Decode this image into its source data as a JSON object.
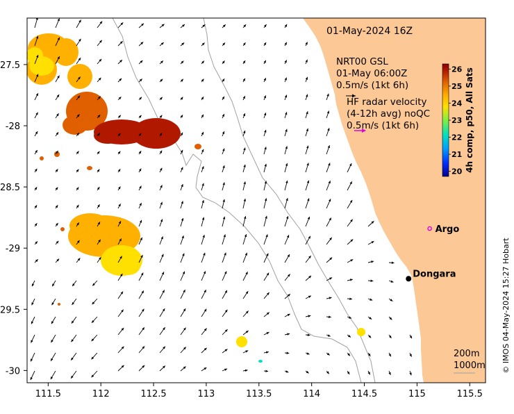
{
  "map": {
    "title_date": "01-May-2024 16Z",
    "x_ticks": [
      "111.5",
      "112",
      "112.5",
      "113",
      "113.5",
      "114",
      "114.5",
      "115",
      "115.5"
    ],
    "y_ticks": [
      "-27.5",
      "-28",
      "-28.5",
      "-29",
      "-29.5",
      "-30"
    ],
    "x_range": [
      111.3,
      115.65
    ],
    "y_range": [
      -27.12,
      -30.1
    ],
    "legend": {
      "line1": "NRT00 GSL",
      "line2": "01-May 06:00Z",
      "line3": "0.5m/s (1kt 6h)",
      "line4": "HF radar velocity",
      "line5": "(4-12h avg) noQC",
      "line6": "0.5m/s (1kt 6h)"
    },
    "colorbar": {
      "label": "4h comp, p50, All Sats",
      "ticks": [
        "26",
        "25",
        "24",
        "23",
        "22",
        "21",
        "20"
      ],
      "range": [
        19.7,
        26.3
      ]
    },
    "places": [
      {
        "name": "Argo",
        "lon": 115.12,
        "lat": -28.84,
        "marker": "circle",
        "color": "#e000e0"
      },
      {
        "name": "Dongara",
        "lon": 114.92,
        "lat": -29.25,
        "marker": "dot",
        "color": "#000000"
      }
    ],
    "depth_labels": {
      "d200": "200m",
      "d1000": "1000m"
    },
    "credit": "© IMOS 04-May-2024 15:27 Hobart",
    "colors": {
      "land": "#fcc896",
      "arrow": "#000000",
      "radar_arrow": "#e000e0",
      "isobath": "#a0a0a0"
    }
  }
}
